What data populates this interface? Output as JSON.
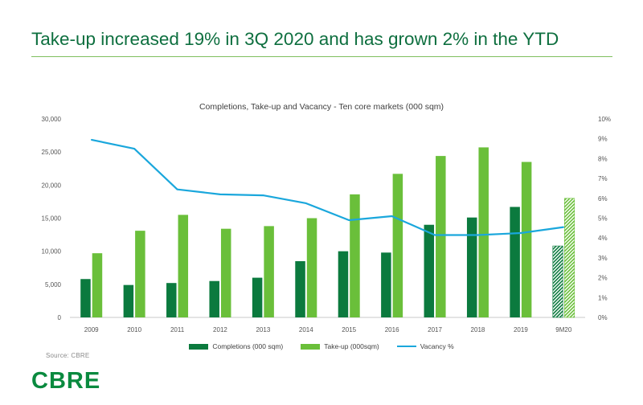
{
  "slide": {
    "title": "Take-up increased 19% in 3Q 2020 and has grown 2% in the YTD",
    "source": "Source: CBRE",
    "logo": "CBRE",
    "title_color": "#0e6f3f",
    "rule_color": "#7fbf5f"
  },
  "chart_data": {
    "type": "bar",
    "title": "Completions, Take-up and Vacancy - Ten core markets (000 sqm)",
    "categories": [
      "2009",
      "2010",
      "2011",
      "2012",
      "2013",
      "2014",
      "2015",
      "2016",
      "2017",
      "2018",
      "2019",
      "9M20"
    ],
    "series": [
      {
        "name": "Completions (000 sqm)",
        "kind": "bar",
        "axis": "left",
        "color": "#0b7a3e",
        "values": [
          5800,
          4900,
          5200,
          5500,
          6000,
          8500,
          10000,
          9800,
          14000,
          15100,
          16700,
          10800
        ]
      },
      {
        "name": "Take-up (000 sqm)",
        "kind": "bar",
        "axis": "left",
        "color": "#6abf3a",
        "values": [
          9700,
          13100,
          15500,
          13400,
          13800,
          15000,
          18600,
          21700,
          24400,
          25700,
          23500,
          18000
        ]
      },
      {
        "name": "Vacancy %",
        "kind": "line",
        "axis": "right",
        "color": "#1aa7dc",
        "values": [
          8.95,
          8.5,
          6.45,
          6.2,
          6.15,
          5.75,
          4.9,
          5.1,
          4.15,
          4.15,
          4.25,
          4.55
        ]
      }
    ],
    "legend_labels": [
      "Completions (000 sqm)",
      "Take-up (000sqm)",
      "Vacancy %"
    ],
    "y_left": {
      "min": 0,
      "max": 30000,
      "ticks": [
        "0",
        "5,000",
        "10,000",
        "15,000",
        "20,000",
        "25,000",
        "30,000"
      ]
    },
    "y_right": {
      "min": 0,
      "max": 10,
      "ticks": [
        "0%",
        "1%",
        "2%",
        "3%",
        "4%",
        "5%",
        "6%",
        "7%",
        "8%",
        "9%",
        "10%"
      ]
    },
    "hatched_category": "9M20",
    "legend_position": "bottom",
    "grid": false
  }
}
